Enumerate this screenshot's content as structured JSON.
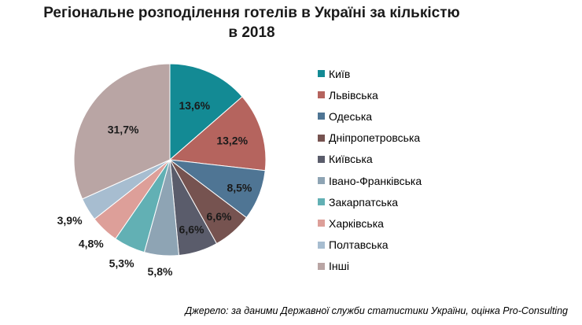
{
  "title_line1": "Регіональне розподілення готелів в Україні за кількістю",
  "title_line2": "в 2018",
  "source": "Джерело: за даними Державної служби статистики України, оцінка Pro-Consulting",
  "chart_data": {
    "type": "pie",
    "title": "Регіональне розподілення готелів в Україні за кількістю в 2018",
    "unit": "%",
    "legend_position": "right",
    "slices": [
      {
        "name": "Київ",
        "value": 13.6,
        "label": "13,6%",
        "color": "#138a94"
      },
      {
        "name": "Львівська",
        "value": 13.2,
        "label": "13,2%",
        "color": "#b5645e"
      },
      {
        "name": "Одеська",
        "value": 8.5,
        "label": "8,5%",
        "color": "#4f7594"
      },
      {
        "name": "Дніпропетровська",
        "value": 6.6,
        "label": "6,6%",
        "color": "#765350"
      },
      {
        "name": "Київська",
        "value": 6.6,
        "label": "6,6%",
        "color": "#5a5c6b"
      },
      {
        "name": "Івано-Франківська",
        "value": 5.8,
        "label": "5,8%",
        "color": "#8ea4b4"
      },
      {
        "name": "Закарпатська",
        "value": 5.3,
        "label": "5,3%",
        "color": "#62b0b4"
      },
      {
        "name": "Харківська",
        "value": 4.8,
        "label": "4,8%",
        "color": "#dd9f99"
      },
      {
        "name": "Полтавська",
        "value": 3.9,
        "label": "3,9%",
        "color": "#a7bdd0"
      },
      {
        "name": "Інші",
        "value": 31.7,
        "label": "31,7%",
        "color": "#b9a5a4"
      }
    ]
  }
}
